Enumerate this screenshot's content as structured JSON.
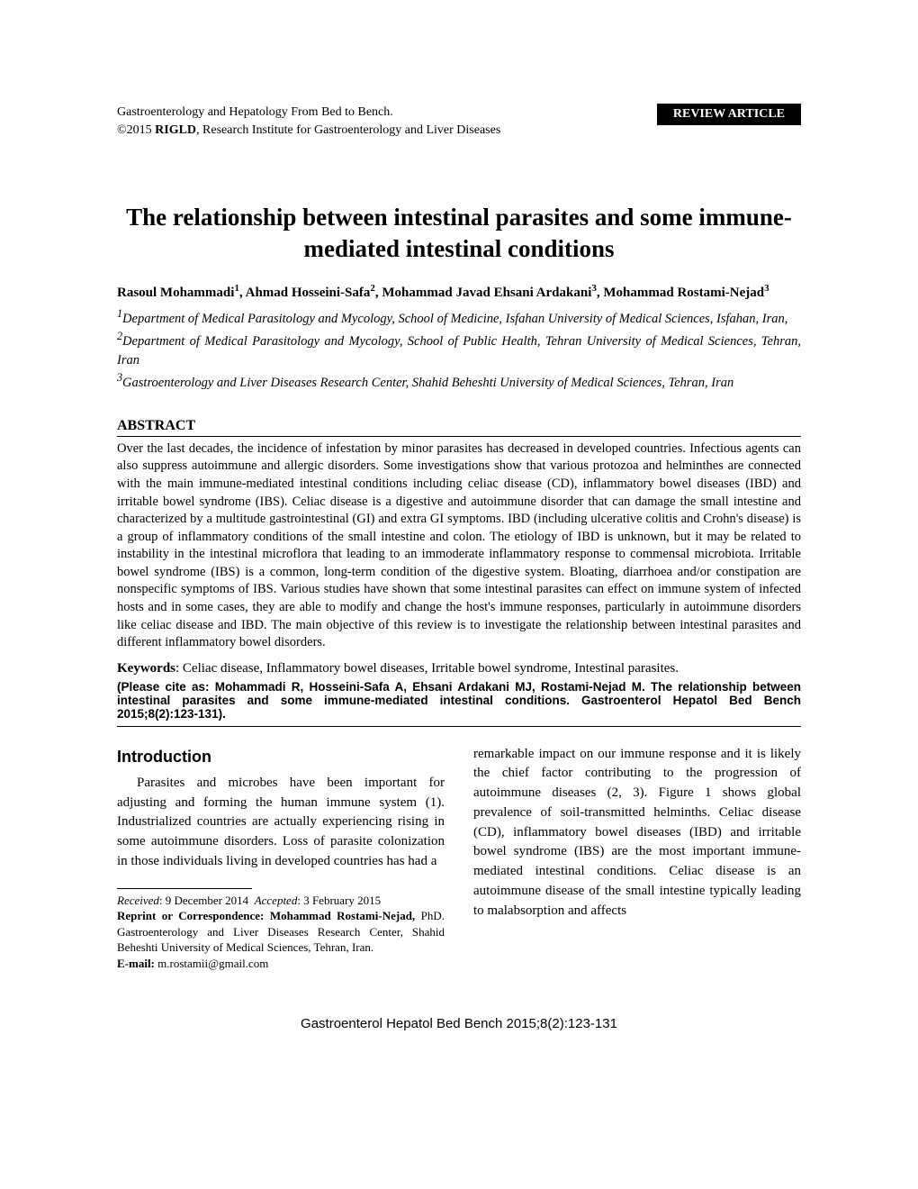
{
  "header": {
    "journal_line1": "Gastroenterology and Hepatology From Bed to Bench.",
    "journal_line2_prefix": "©2015 ",
    "journal_line2_bold": "RIGLD",
    "journal_line2_suffix": ", Research Institute for Gastroenterology and Liver Diseases",
    "badge": "REVIEW ARTICLE"
  },
  "title": "The relationship between intestinal parasites and some immune-mediated intestinal conditions",
  "authors_html": "Rasoul Mohammadi<sup>1</sup>, Ahmad Hosseini-Safa<sup>2</sup>, Mohammad Javad Ehsani Ardakani<sup>3</sup>, Mohammad Rostami-Nejad<sup>3</sup>",
  "affiliations": {
    "a1": "Department of Medical Parasitology and Mycology, School of Medicine, Isfahan University of Medical Sciences, Isfahan, Iran,",
    "a2": "Department of Medical Parasitology and Mycology, School of Public Health, Tehran University of Medical Sciences, Tehran, Iran",
    "a3": "Gastroenterology and Liver Diseases Research Center, Shahid Beheshti University of Medical Sciences, Tehran, Iran"
  },
  "abstract": {
    "heading": "ABSTRACT",
    "text": "Over the last decades, the incidence of infestation by minor parasites has decreased in developed countries. Infectious agents can also suppress autoimmune and allergic disorders. Some investigations show that various protozoa and helminthes are connected with the main immune-mediated intestinal conditions including celiac disease (CD), inflammatory bowel diseases (IBD) and irritable bowel syndrome (IBS). Celiac disease is a digestive and autoimmune disorder that can damage the small intestine and characterized by a multitude gastrointestinal (GI) and extra GI symptoms. IBD (including ulcerative colitis and Crohn's disease) is a group of inflammatory conditions of the small intestine and colon. The etiology of IBD is unknown, but it may be related to instability in the intestinal microflora that leading to an immoderate inflammatory response to commensal microbiota. Irritable bowel syndrome (IBS) is a common, long-term condition of the digestive system. Bloating, diarrhoea and/or constipation are nonspecific symptoms of IBS. Various studies have shown that some intestinal parasites can effect on immune system of infected hosts and in some cases, they are able to modify and change the host's immune responses, particularly in autoimmune disorders like celiac disease and IBD. The main objective of this review is to investigate the relationship between intestinal parasites and different inflammatory bowel disorders."
  },
  "keywords": {
    "label": "Keywords",
    "text": ": Celiac disease, Inflammatory bowel diseases, Irritable bowel syndrome, Intestinal parasites."
  },
  "citation": {
    "prefix": "(Please cite as: ",
    "bold": "Mohammadi R, Hosseini-Safa A, Ehsani Ardakani MJ, Rostami-Nejad M. The relationship between intestinal parasites and some immune-mediated intestinal conditions. Gastroenterol Hepatol Bed Bench 2015;8(2):123-131)."
  },
  "intro_heading": "Introduction",
  "body": {
    "col1": "Parasites and microbes have been important for adjusting and forming the human immune system (1). Industrialized countries are actually experiencing rising in some autoimmune disorders. Loss of parasite colonization in those individuals living in developed countries has had a",
    "col2": "remarkable impact on our immune response and it is likely the chief factor contributing to the progression of autoimmune diseases (2, 3). Figure 1 shows global prevalence of soil-transmitted helminths. Celiac disease (CD), inflammatory bowel diseases (IBD) and irritable bowel syndrome (IBS) are the most important immune-mediated intestinal conditions. Celiac disease is an autoimmune disease of the small intestine typically leading to malabsorption and affects"
  },
  "footnote": {
    "received_label": "Received",
    "received_date": ": 9 December 2014",
    "accepted_label": "Accepted",
    "accepted_date": ": 3 February 2015",
    "reprint_label": "Reprint or Correspondence",
    "reprint_name": ": Mohammad Rostami-Nejad,",
    "reprint_body": "PhD. Gastroenterology and Liver Diseases Research Center, Shahid Beheshti University of Medical Sciences, Tehran, Iran.",
    "email_label": "E-mail:",
    "email": " m.rostamii@gmail.com"
  },
  "footer": "Gastroenterol Hepatol Bed Bench 2015;8(2):123-131"
}
